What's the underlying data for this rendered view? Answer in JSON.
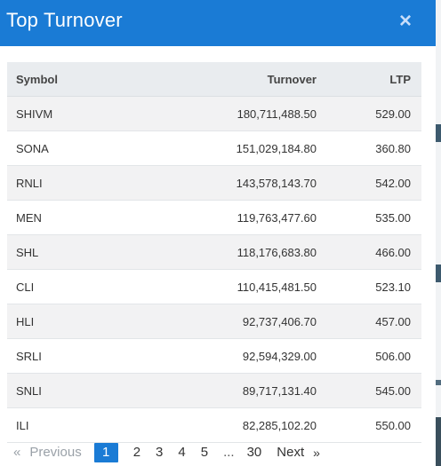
{
  "modal": {
    "title": "Top Turnover",
    "close_icon": "×"
  },
  "table": {
    "headers": {
      "symbol": "Symbol",
      "turnover": "Turnover",
      "ltp": "LTP"
    },
    "rows": [
      {
        "symbol": "SHIVM",
        "turnover": "180,711,488.50",
        "ltp": "529.00"
      },
      {
        "symbol": "SONA",
        "turnover": "151,029,184.80",
        "ltp": "360.80"
      },
      {
        "symbol": "RNLI",
        "turnover": "143,578,143.70",
        "ltp": "542.00"
      },
      {
        "symbol": "MEN",
        "turnover": "119,763,477.60",
        "ltp": "535.00"
      },
      {
        "symbol": "SHL",
        "turnover": "118,176,683.80",
        "ltp": "466.00"
      },
      {
        "symbol": "CLI",
        "turnover": "110,415,481.50",
        "ltp": "523.10"
      },
      {
        "symbol": "HLI",
        "turnover": "92,737,406.70",
        "ltp": "457.00"
      },
      {
        "symbol": "SRLI",
        "turnover": "92,594,329.00",
        "ltp": "506.00"
      },
      {
        "symbol": "SNLI",
        "turnover": "89,717,131.40",
        "ltp": "545.00"
      },
      {
        "symbol": "ILI",
        "turnover": "82,285,102.20",
        "ltp": "550.00"
      }
    ]
  },
  "pagination": {
    "prev_icon": "«",
    "prev_label": "Previous",
    "pages": [
      "1",
      "2",
      "3",
      "4",
      "5"
    ],
    "active_page": "1",
    "ellipsis": "...",
    "last_page": "30",
    "next_label": "Next",
    "next_icon": "»"
  },
  "colors": {
    "accent": "#1a7bd5"
  }
}
